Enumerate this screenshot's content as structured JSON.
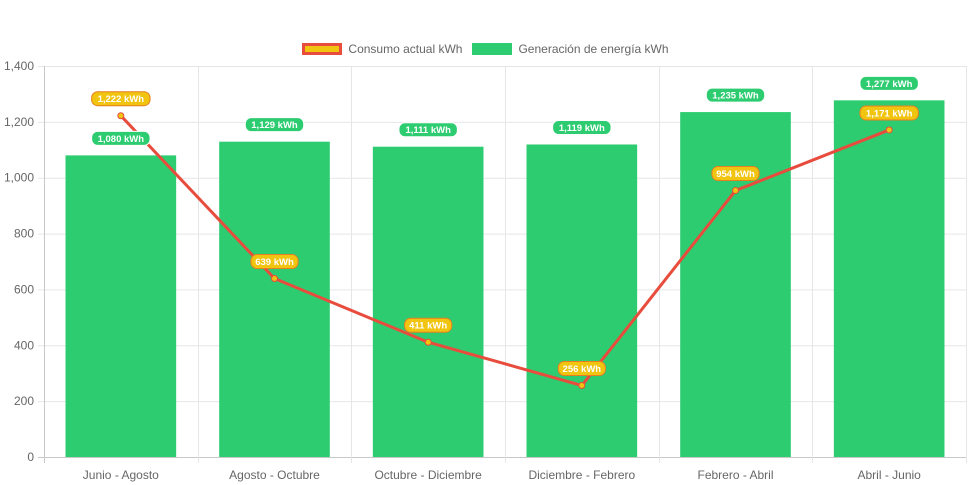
{
  "chart_data": {
    "type": "bar",
    "title": "",
    "xlabel": "",
    "ylabel": "",
    "ylim": [
      0,
      1400
    ],
    "yticks": [
      0,
      200,
      400,
      600,
      800,
      1000,
      1200,
      1400
    ],
    "ytick_labels": [
      "0",
      "200",
      "400",
      "600",
      "800",
      "1,000",
      "1,200",
      "1,400"
    ],
    "grid": true,
    "legend_position": "top-center",
    "categories": [
      "Junio - Agosto",
      "Agosto - Octubre",
      "Octubre - Diciembre",
      "Diciembre - Febrero",
      "Febrero - Abril",
      "Abril - Junio"
    ],
    "series": [
      {
        "name": "Consumo actual kWh",
        "type": "line",
        "color": "#e74c3c",
        "fill_color": "#f1c40f",
        "values": [
          1222,
          639,
          411,
          256,
          954,
          1171
        ],
        "labels": [
          "1,222 kWh",
          "639 kWh",
          "411 kWh",
          "256 kWh",
          "954 kWh",
          "1,171 kWh"
        ]
      },
      {
        "name": "Generación de energía kWh",
        "type": "bar",
        "color": "#2ecc71",
        "values": [
          1080,
          1129,
          1111,
          1119,
          1235,
          1277
        ],
        "labels": [
          "1,080 kWh",
          "1,129 kWh",
          "1,111 kWh",
          "1,119 kWh",
          "1,235 kWh",
          "1,277 kWh"
        ]
      }
    ]
  }
}
